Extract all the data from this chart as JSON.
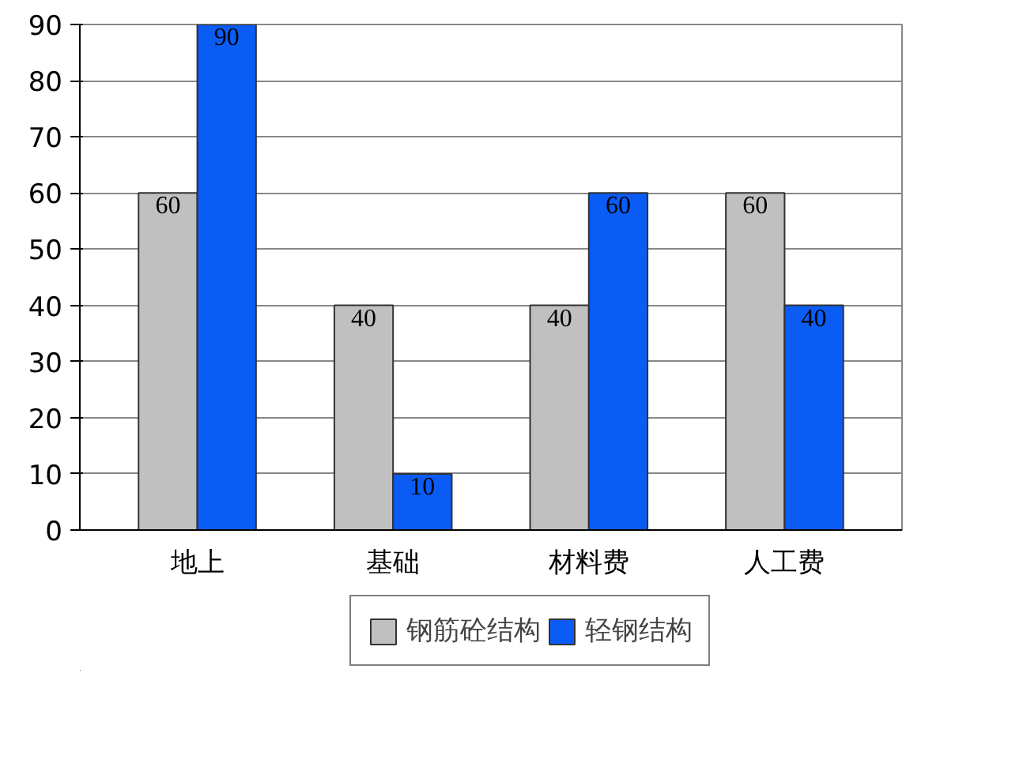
{
  "chart_data": {
    "type": "bar",
    "categories": [
      "地上",
      "基础",
      "材料费",
      "人工费"
    ],
    "series": [
      {
        "name": "钢筋砼结构",
        "color": "#c0c0c0",
        "values": [
          60,
          40,
          40,
          60
        ]
      },
      {
        "name": "轻钢结构",
        "color": "#0a5cf5",
        "values": [
          90,
          10,
          60,
          40
        ]
      }
    ],
    "ylim": [
      0,
      90
    ],
    "yticks": [
      0,
      10,
      20,
      30,
      40,
      50,
      60,
      70,
      80,
      90
    ],
    "grid": "y",
    "legend": "bottom",
    "data_labels": true
  }
}
